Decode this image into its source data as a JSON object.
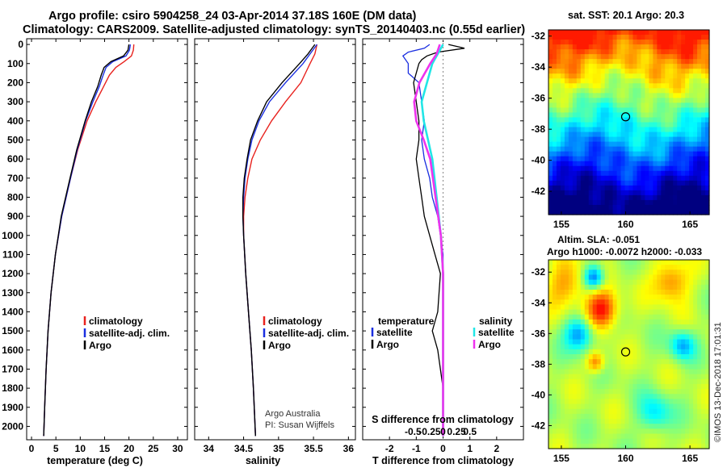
{
  "header": {
    "title_line1": "Argo profile: csiro 5904258_24 03-Apr-2014 37.18S 160E (DM data)",
    "title_line2": "Climatology: CARS2009. Satellite-adjusted climatology: synTS_20140403.nc (0.55d earlier)"
  },
  "colors": {
    "climatology": "#e8221e",
    "satellite": "#1a2ee0",
    "argo": "#000000",
    "sal_satellite": "#22e6e6",
    "sal_argo": "#ee33ee"
  },
  "chart_data": [
    {
      "id": "temperature",
      "type": "line",
      "xlabel": "temperature (deg C)",
      "ylabel": "depth",
      "xlim": [
        -1,
        32
      ],
      "ylim": [
        2070,
        -30
      ],
      "xticks": [
        0,
        5,
        10,
        15,
        20,
        25,
        30
      ],
      "yticks": [
        0,
        100,
        200,
        300,
        400,
        500,
        600,
        700,
        800,
        900,
        1000,
        1100,
        1200,
        1300,
        1400,
        1500,
        1600,
        1700,
        1800,
        1900,
        2000
      ],
      "series": [
        {
          "name": "climatology",
          "depths": [
            0,
            30,
            60,
            90,
            120,
            160,
            220,
            300,
            400,
            550,
            700,
            900,
            1100,
            1300,
            1500,
            1700,
            1900,
            2050
          ],
          "values": [
            21.0,
            20.9,
            20.5,
            19.0,
            17.3,
            16.0,
            14.8,
            13.2,
            11.4,
            9.5,
            8.0,
            6.2,
            4.9,
            4.0,
            3.4,
            3.0,
            2.7,
            2.5
          ]
        },
        {
          "name": "satellite-adj. clim.",
          "depths": [
            0,
            30,
            60,
            90,
            120,
            160,
            220,
            300,
            400,
            550,
            700,
            900,
            1100,
            1300,
            1500,
            1700,
            1900,
            2050
          ],
          "values": [
            20.3,
            20.1,
            19.4,
            16.7,
            15.3,
            14.7,
            13.9,
            12.6,
            11.1,
            9.4,
            8.0,
            6.2,
            4.9,
            4.0,
            3.4,
            3.0,
            2.7,
            2.5
          ]
        },
        {
          "name": "Argo",
          "depths": [
            0,
            30,
            60,
            90,
            120,
            160,
            220,
            300,
            400,
            550,
            700,
            900,
            1100,
            1300,
            1500,
            1700,
            1900,
            2050
          ],
          "values": [
            20.0,
            19.8,
            18.9,
            16.3,
            14.9,
            14.3,
            13.6,
            12.3,
            11.0,
            9.3,
            7.9,
            6.1,
            4.9,
            4.0,
            3.4,
            3.0,
            2.7,
            2.5
          ]
        }
      ],
      "legend": [
        "climatology",
        "satellite-adj. clim.",
        "Argo"
      ]
    },
    {
      "id": "salinity",
      "type": "line",
      "xlabel": "salinity",
      "xlim": [
        33.8,
        36.1
      ],
      "ylim": [
        2070,
        -30
      ],
      "xticks": [
        34,
        34.5,
        35,
        35.5,
        36
      ],
      "series": [
        {
          "name": "climatology",
          "depths": [
            0,
            50,
            100,
            200,
            300,
            400,
            500,
            600,
            700,
            800,
            900,
            1000,
            1200,
            1400,
            1600,
            1800,
            2050
          ],
          "values": [
            35.55,
            35.52,
            35.45,
            35.32,
            35.1,
            34.9,
            34.74,
            34.62,
            34.56,
            34.52,
            34.5,
            34.5,
            34.53,
            34.57,
            34.61,
            34.64,
            34.67
          ]
        },
        {
          "name": "satellite-adj. clim.",
          "depths": [
            0,
            50,
            100,
            200,
            300,
            400,
            500,
            600,
            700,
            800,
            900,
            1000,
            1200,
            1400,
            1600,
            1800,
            2050
          ],
          "values": [
            35.55,
            35.45,
            35.35,
            35.1,
            34.87,
            34.72,
            34.62,
            34.56,
            34.52,
            34.5,
            34.49,
            34.5,
            34.53,
            34.57,
            34.61,
            34.64,
            34.67
          ]
        },
        {
          "name": "Argo",
          "depths": [
            0,
            50,
            100,
            200,
            300,
            400,
            500,
            600,
            700,
            800,
            900,
            1000,
            1200,
            1400,
            1600,
            1800,
            2050
          ],
          "values": [
            35.52,
            35.42,
            35.3,
            35.05,
            34.83,
            34.7,
            34.6,
            34.55,
            34.51,
            34.49,
            34.49,
            34.5,
            34.53,
            34.57,
            34.61,
            34.64,
            34.67
          ]
        }
      ],
      "legend": [
        "climatology",
        "satellite-adj. clim.",
        "Argo"
      ],
      "credit": [
        "Argo Australia",
        "PI: Susan Wijffels"
      ]
    },
    {
      "id": "difference",
      "type": "line",
      "xlabel": "T difference from climatology",
      "xlabel_top": "S difference from climatology",
      "xlim": [
        -3,
        3
      ],
      "ylim": [
        2070,
        -30
      ],
      "xticks": [
        -2,
        -1,
        0,
        1,
        2
      ],
      "sticks": [
        "-0.5",
        "-0.25",
        "0",
        "0.25",
        "0.5"
      ],
      "series": [
        {
          "name": "temperature satellite",
          "depths": [
            0,
            20,
            40,
            60,
            100,
            150,
            200,
            300,
            400,
            500,
            600,
            700,
            800,
            900,
            1000,
            1100,
            1200,
            1400,
            1600,
            1800,
            2050
          ],
          "values": [
            -0.5,
            -0.7,
            -1.3,
            -1.5,
            -1.3,
            -1.3,
            -0.9,
            -0.8,
            -0.7,
            -0.8,
            -0.7,
            -0.5,
            -0.4,
            -0.2,
            -0.1,
            0,
            0,
            0,
            0,
            0,
            0
          ]
        },
        {
          "name": "temperature Argo",
          "depths": [
            0,
            20,
            40,
            60,
            80,
            100,
            150,
            200,
            300,
            400,
            500,
            600,
            700,
            800,
            900,
            1000,
            1100,
            1200,
            1400,
            1500,
            1600,
            1800,
            2050
          ],
          "values": [
            0.2,
            0.8,
            -0.2,
            -0.6,
            -0.8,
            -0.9,
            -1.0,
            -1.1,
            -1.0,
            -0.9,
            -0.9,
            -1.0,
            -0.9,
            -0.8,
            -0.7,
            -0.5,
            -0.3,
            -0.1,
            -0.2,
            -0.4,
            -0.2,
            0,
            0
          ]
        },
        {
          "name": "salinity satellite",
          "depths": [
            0,
            50,
            100,
            200,
            300,
            400,
            500,
            600,
            800,
            1000,
            1200,
            1400,
            1600,
            1800,
            2050
          ],
          "values": [
            0,
            -0.05,
            -0.1,
            -0.15,
            -0.2,
            -0.18,
            -0.14,
            -0.1,
            -0.06,
            -0.02,
            0,
            0,
            0,
            0,
            0
          ]
        },
        {
          "name": "salinity Argo",
          "depths": [
            0,
            50,
            100,
            200,
            300,
            400,
            500,
            600,
            800,
            1000,
            1200,
            1400,
            1600,
            1800,
            2050
          ],
          "values": [
            -0.03,
            -0.06,
            -0.12,
            -0.22,
            -0.27,
            -0.25,
            -0.18,
            -0.12,
            -0.07,
            -0.02,
            0,
            0,
            0,
            0,
            0
          ]
        }
      ],
      "legend_temperature": {
        "heading": "temperature",
        "items": [
          "satellite",
          "Argo"
        ]
      },
      "legend_salinity": {
        "heading": "salinity",
        "items": [
          "satellite",
          "Argo"
        ]
      }
    },
    {
      "id": "sst-map",
      "type": "heatmap",
      "title": "sat. SST: 20.1 Argo: 20.3",
      "xlim": [
        154,
        166.5
      ],
      "ylim": [
        -43.5,
        -31.6
      ],
      "xticks": [
        155,
        160,
        165
      ],
      "yticks": [
        -32,
        -34,
        -36,
        -38,
        -40,
        -42
      ],
      "marker": {
        "lon": 160,
        "lat": -37.2
      }
    },
    {
      "id": "sla-map",
      "type": "heatmap",
      "title_line1": "Altim. SLA: -0.051",
      "title_line2": "Argo h1000: -0.0072 h2000: -0.033",
      "xlim": [
        154,
        166.5
      ],
      "ylim": [
        -43.5,
        -31.2
      ],
      "xticks": [
        155,
        160,
        165
      ],
      "yticks": [
        -32,
        -34,
        -36,
        -38,
        -40,
        -42
      ],
      "marker": {
        "lon": 160,
        "lat": -37.2
      }
    }
  ],
  "stamp": "©IMOS 13-Dec-2018 17:01:31"
}
